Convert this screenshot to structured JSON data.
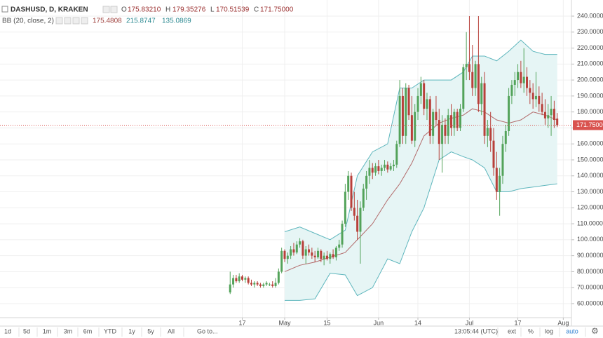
{
  "header": {
    "symbol": "DASHUSD, D, KRAKEN",
    "o_label": "O",
    "o": "175.83210",
    "h_label": "H",
    "h": "179.35276",
    "l_label": "L",
    "l": "170.51539",
    "c_label": "C",
    "c": "171.75000",
    "indicator": "BB (20, close, 2)",
    "bb_basis": "175.4808",
    "bb_upper": "215.8747",
    "bb_lower": "135.0869"
  },
  "toolbar": {
    "ranges": [
      "1d",
      "5d",
      "1m",
      "3m",
      "6m",
      "YTD",
      "1y",
      "5y",
      "All"
    ],
    "goto": "Go to...",
    "time": "13:05:44 (UTC)",
    "options": [
      "ext",
      "%",
      "log",
      "auto"
    ]
  },
  "chart_data": {
    "type": "candlestick",
    "up_color": "#53a35a",
    "down_color": "#b8403a",
    "grid": true,
    "ohlc": [
      [
        67,
        80,
        66,
        72
      ],
      [
        72,
        78,
        70,
        76
      ],
      [
        76,
        78,
        73,
        74
      ],
      [
        74,
        79,
        73,
        77
      ],
      [
        77,
        78,
        74,
        75
      ],
      [
        75,
        77,
        73,
        76
      ],
      [
        76,
        77,
        72,
        73
      ],
      [
        73,
        75,
        71,
        72
      ],
      [
        72,
        74,
        70,
        73
      ],
      [
        73,
        74,
        71,
        72
      ],
      [
        72,
        73,
        70,
        71
      ],
      [
        71,
        73,
        70,
        72
      ],
      [
        72,
        74,
        71,
        73
      ],
      [
        72,
        73,
        71,
        72
      ],
      [
        72,
        74,
        70,
        71
      ],
      [
        71,
        76,
        70,
        73
      ],
      [
        73,
        82,
        72,
        80
      ],
      [
        80,
        95,
        79,
        93
      ],
      [
        93,
        94,
        86,
        88
      ],
      [
        88,
        92,
        85,
        90
      ],
      [
        90,
        96,
        88,
        94
      ],
      [
        94,
        98,
        90,
        92
      ],
      [
        92,
        99,
        91,
        97
      ],
      [
        97,
        101,
        95,
        99
      ],
      [
        99,
        100,
        88,
        90
      ],
      [
        90,
        96,
        85,
        94
      ],
      [
        94,
        97,
        90,
        92
      ],
      [
        92,
        95,
        88,
        90
      ],
      [
        90,
        93,
        86,
        89
      ],
      [
        89,
        95,
        88,
        93
      ],
      [
        93,
        94,
        86,
        88
      ],
      [
        88,
        92,
        84,
        90
      ],
      [
        90,
        93,
        87,
        88
      ],
      [
        88,
        92,
        85,
        91
      ],
      [
        91,
        94,
        88,
        89
      ],
      [
        89,
        96,
        87,
        95
      ],
      [
        95,
        100,
        93,
        97
      ],
      [
        97,
        112,
        95,
        110
      ],
      [
        110,
        135,
        108,
        130
      ],
      [
        130,
        143,
        125,
        140
      ],
      [
        140,
        142,
        118,
        120
      ],
      [
        120,
        130,
        112,
        115
      ],
      [
        115,
        125,
        100,
        105
      ],
      [
        105,
        124,
        85,
        120
      ],
      [
        120,
        135,
        118,
        132
      ],
      [
        132,
        143,
        125,
        140
      ],
      [
        140,
        150,
        135,
        145
      ],
      [
        145,
        148,
        138,
        142
      ],
      [
        142,
        148,
        140,
        146
      ],
      [
        146,
        150,
        141,
        143
      ],
      [
        143,
        147,
        140,
        145
      ],
      [
        145,
        150,
        143,
        147
      ],
      [
        147,
        149,
        142,
        144
      ],
      [
        144,
        148,
        143,
        146
      ],
      [
        146,
        150,
        143,
        147
      ],
      [
        147,
        162,
        145,
        160
      ],
      [
        160,
        200,
        158,
        190
      ],
      [
        190,
        195,
        160,
        165
      ],
      [
        165,
        198,
        160,
        195
      ],
      [
        195,
        197,
        175,
        178
      ],
      [
        178,
        190,
        160,
        162
      ],
      [
        162,
        185,
        158,
        180
      ],
      [
        180,
        195,
        175,
        190
      ],
      [
        190,
        202,
        185,
        198
      ],
      [
        198,
        200,
        178,
        182
      ],
      [
        182,
        192,
        175,
        188
      ],
      [
        188,
        190,
        160,
        165
      ],
      [
        165,
        182,
        160,
        180
      ],
      [
        180,
        190,
        172,
        175
      ],
      [
        175,
        182,
        150,
        160
      ],
      [
        160,
        178,
        142,
        172
      ],
      [
        172,
        176,
        160,
        165
      ],
      [
        165,
        182,
        160,
        178
      ],
      [
        178,
        185,
        165,
        170
      ],
      [
        170,
        182,
        165,
        180
      ],
      [
        180,
        182,
        168,
        170
      ],
      [
        170,
        185,
        168,
        182
      ],
      [
        182,
        210,
        180,
        208
      ],
      [
        208,
        230,
        200,
        210
      ],
      [
        210,
        240,
        200,
        205
      ],
      [
        205,
        222,
        190,
        195
      ],
      [
        195,
        212,
        190,
        210
      ],
      [
        210,
        240,
        180,
        185
      ],
      [
        185,
        202,
        178,
        198
      ],
      [
        198,
        205,
        160,
        165
      ],
      [
        165,
        175,
        158,
        170
      ],
      [
        170,
        180,
        155,
        162
      ],
      [
        162,
        170,
        140,
        145
      ],
      [
        145,
        155,
        125,
        130
      ],
      [
        130,
        145,
        115,
        140
      ],
      [
        140,
        165,
        135,
        160
      ],
      [
        160,
        172,
        155,
        168
      ],
      [
        168,
        195,
        165,
        190
      ],
      [
        190,
        200,
        185,
        197
      ],
      [
        197,
        205,
        190,
        200
      ],
      [
        200,
        210,
        195,
        205
      ],
      [
        205,
        212,
        195,
        198
      ],
      [
        198,
        220,
        192,
        202
      ],
      [
        202,
        208,
        190,
        195
      ],
      [
        195,
        200,
        185,
        192
      ],
      [
        192,
        198,
        182,
        188
      ],
      [
        188,
        205,
        183,
        190
      ],
      [
        190,
        196,
        180,
        185
      ],
      [
        185,
        192,
        178,
        180
      ],
      [
        180,
        188,
        172,
        176
      ],
      [
        176,
        185,
        170,
        178
      ],
      [
        178,
        190,
        165,
        182
      ],
      [
        182,
        187,
        170,
        175
      ],
      [
        175.8321,
        179.35276,
        170.51539,
        171.75
      ]
    ],
    "bands": {
      "x": [
        18,
        23,
        28,
        33,
        38,
        42,
        47,
        52,
        56,
        60,
        64,
        69,
        73,
        77,
        80,
        84,
        88,
        92,
        96,
        100,
        104,
        108
      ],
      "upper": [
        105,
        108,
        104,
        100,
        106,
        140,
        155,
        160,
        195,
        195,
        200,
        200,
        200,
        205,
        215,
        215,
        212,
        218,
        225,
        218,
        216,
        216
      ],
      "basis": [
        80,
        84,
        86,
        89,
        92,
        100,
        110,
        125,
        135,
        148,
        165,
        173,
        176,
        178,
        182,
        180,
        175,
        173,
        175,
        180,
        178,
        175
      ],
      "lower": [
        62,
        62,
        63,
        79,
        78,
        65,
        70,
        88,
        85,
        105,
        120,
        150,
        155,
        152,
        150,
        145,
        130,
        130,
        132,
        133,
        134,
        135
      ],
      "line_color": "#5eb6bd",
      "fill_color": "#e6f5f5",
      "basis_color": "#b26a6a"
    },
    "last_price_label": "171.75000",
    "last_price_color": "#d9534f",
    "xlim": [
      -76,
      112.7
    ],
    "ylim": [
      51.2,
      250.1
    ],
    "xticks": [
      {
        "value": 4,
        "label": "17"
      },
      {
        "value": 18,
        "label": "May"
      },
      {
        "value": 32,
        "label": "15"
      },
      {
        "value": 49,
        "label": "Jun"
      },
      {
        "value": 62,
        "label": "14"
      },
      {
        "value": 79,
        "label": "Jul"
      },
      {
        "value": 95,
        "label": "17"
      },
      {
        "value": 110,
        "label": "Aug"
      }
    ],
    "yticks": [
      {
        "value": 60,
        "label": "60.000000"
      },
      {
        "value": 70,
        "label": "70.000000"
      },
      {
        "value": 80,
        "label": "80.000000"
      },
      {
        "value": 90,
        "label": "90.000000"
      },
      {
        "value": 100,
        "label": "100.000000"
      },
      {
        "value": 110,
        "label": "110.000000"
      },
      {
        "value": 120,
        "label": "120.000000"
      },
      {
        "value": 130,
        "label": "130.000000"
      },
      {
        "value": 140,
        "label": "140.000000"
      },
      {
        "value": 150,
        "label": "150.000000"
      },
      {
        "value": 160,
        "label": "160.000000"
      },
      {
        "value": 170,
        "label": "170.000000"
      },
      {
        "value": 180,
        "label": "180.000000"
      },
      {
        "value": 190,
        "label": "190.000000"
      },
      {
        "value": 200,
        "label": "200.000000"
      },
      {
        "value": 210,
        "label": "210.000000"
      },
      {
        "value": 220,
        "label": "220.000000"
      },
      {
        "value": 230,
        "label": "230.000000"
      },
      {
        "value": 240,
        "label": "240.000000"
      }
    ]
  }
}
